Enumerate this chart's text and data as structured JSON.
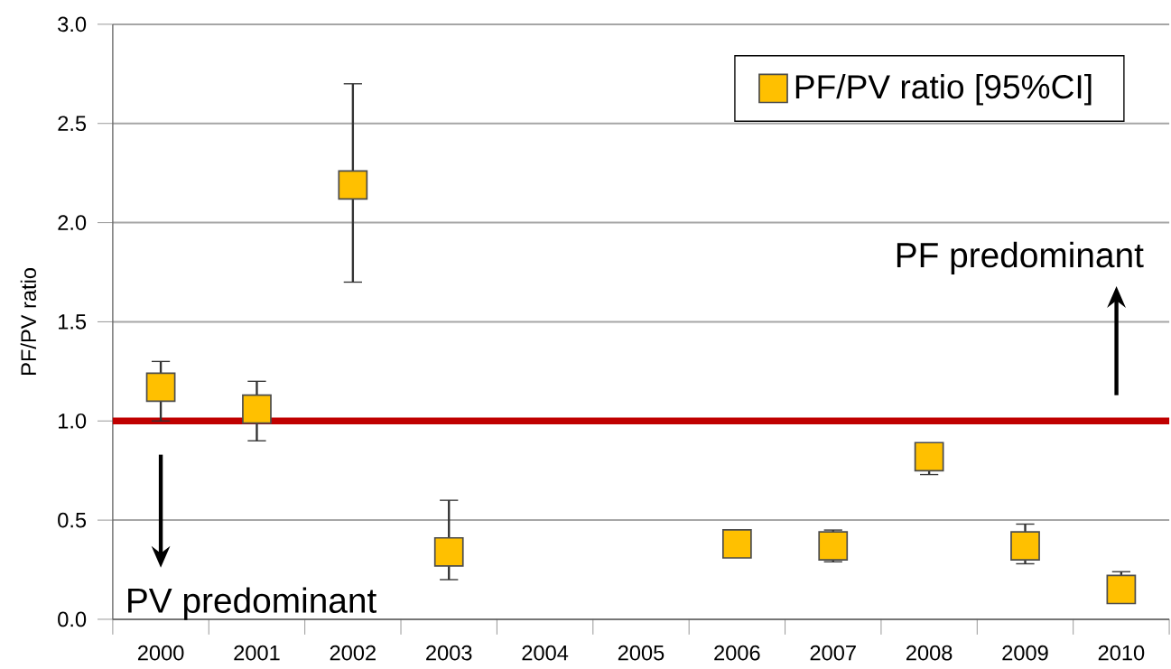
{
  "chart_data": {
    "type": "scatter",
    "ylabel": "PF/PV ratio",
    "categories": [
      "2000",
      "2001",
      "2002",
      "2003",
      "2004",
      "2005",
      "2006",
      "2007",
      "2008",
      "2009",
      "2010"
    ],
    "series": [
      {
        "name": "PF/PV ratio [95%CI]",
        "color": "#ffc000",
        "values": [
          1.17,
          1.06,
          2.19,
          0.34,
          null,
          null,
          0.38,
          0.37,
          0.82,
          0.37,
          0.15
        ],
        "errors": [
          [
            1.0,
            1.3
          ],
          [
            0.9,
            1.2
          ],
          [
            1.7,
            2.7
          ],
          [
            0.2,
            0.6
          ],
          null,
          null,
          null,
          [
            0.29,
            0.45
          ],
          [
            0.73,
            0.82
          ],
          [
            0.28,
            0.48
          ],
          [
            0.15,
            0.24
          ]
        ]
      }
    ],
    "ylim": [
      0,
      3
    ],
    "yticks": [
      {
        "value": 0,
        "label": "0.0"
      },
      0.5,
      {
        "value": 1,
        "label": "1.0"
      },
      1.5,
      {
        "value": 2,
        "label": "2.0"
      },
      2.5,
      {
        "value": 3,
        "label": "3.0"
      }
    ],
    "grid": "y",
    "legend": "top right",
    "marker": "square",
    "ref_lines": [
      {
        "axis": "y",
        "value": 1.0,
        "color": "#c00000"
      }
    ],
    "annotations": [
      "PF predominant",
      "PV predominant"
    ]
  }
}
